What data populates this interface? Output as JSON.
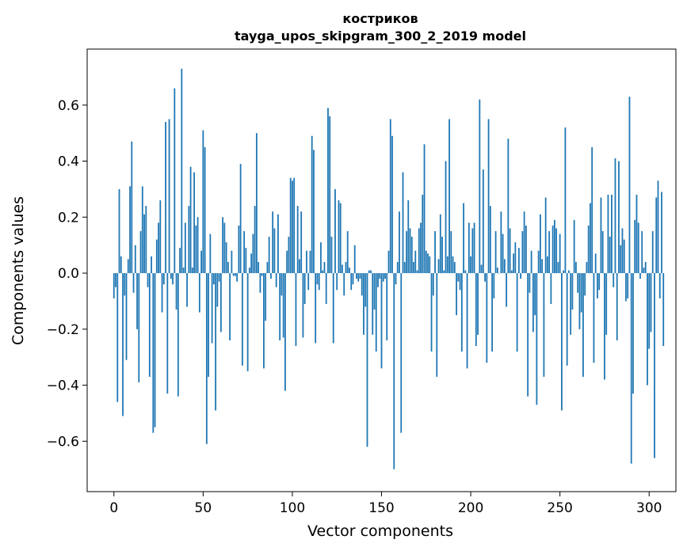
{
  "chart_data": {
    "type": "bar",
    "title_line1": "костриков",
    "title_line2": "tayga_upos_skipgram_300_2_2019 model",
    "xlabel": "Vector components",
    "ylabel": "Components values",
    "xlim": [
      -15,
      315
    ],
    "ylim": [
      -0.78,
      0.8
    ],
    "xticks": [
      0,
      50,
      100,
      150,
      200,
      250,
      300
    ],
    "xtick_labels": [
      "0",
      "50",
      "100",
      "150",
      "200",
      "250",
      "300"
    ],
    "yticks": [
      -0.6,
      -0.4,
      -0.2,
      0.0,
      0.2,
      0.4,
      0.6
    ],
    "ytick_labels": [
      "−0.6",
      "−0.4",
      "−0.2",
      "0.0",
      "0.2",
      "0.4",
      "0.6"
    ],
    "bar_color": "#1f77b4",
    "grid": false,
    "values": [
      -0.09,
      -0.05,
      -0.46,
      0.3,
      0.06,
      -0.51,
      -0.08,
      -0.31,
      0.05,
      0.31,
      0.47,
      -0.07,
      0.1,
      -0.2,
      -0.39,
      0.15,
      0.31,
      0.21,
      0.24,
      -0.05,
      -0.37,
      0.06,
      -0.57,
      -0.55,
      0.12,
      0.18,
      0.26,
      -0.14,
      -0.04,
      0.54,
      -0.43,
      0.55,
      -0.02,
      -0.04,
      0.66,
      -0.13,
      -0.44,
      0.09,
      0.73,
      0.02,
      0.18,
      -0.12,
      0.24,
      0.38,
      0.02,
      0.36,
      0.17,
      0.2,
      -0.14,
      0.08,
      0.51,
      0.45,
      -0.61,
      -0.37,
      0.14,
      -0.25,
      -0.04,
      -0.49,
      -0.12,
      -0.03,
      -0.21,
      0.2,
      0.18,
      0.11,
      0.04,
      -0.24,
      0.08,
      -0.01,
      -0.01,
      -0.03,
      0.17,
      0.39,
      -0.33,
      0.15,
      0.09,
      -0.35,
      0.02,
      0.07,
      0.14,
      0.24,
      0.5,
      0.04,
      -0.07,
      -0.01,
      -0.34,
      -0.17,
      0.04,
      0.13,
      -0.02,
      0.22,
      0.16,
      -0.05,
      0.21,
      -0.24,
      -0.08,
      -0.23,
      -0.42,
      0.08,
      0.13,
      0.34,
      0.33,
      0.34,
      -0.26,
      0.24,
      0.05,
      0.22,
      -0.23,
      -0.11,
      0.08,
      -0.06,
      0.08,
      0.49,
      0.44,
      -0.25,
      -0.04,
      -0.06,
      0.11,
      0.01,
      0.04,
      -0.11,
      0.59,
      0.56,
      0.13,
      -0.25,
      0.3,
      -0.06,
      0.26,
      0.25,
      0.03,
      -0.08,
      0.04,
      0.15,
      0.02,
      -0.06,
      -0.04,
      0.1,
      -0.02,
      -0.03,
      -0.02,
      -0.08,
      -0.22,
      -0.12,
      -0.62,
      0.01,
      0.01,
      -0.22,
      -0.13,
      -0.28,
      -0.05,
      -0.02,
      -0.34,
      -0.03,
      -0.02,
      -0.24,
      0.08,
      0.55,
      0.49,
      -0.7,
      -0.04,
      0.04,
      0.22,
      -0.57,
      0.36,
      0.04,
      0.15,
      0.26,
      0.16,
      0.13,
      0.04,
      0.08,
      0.01,
      0.16,
      0.18,
      0.28,
      0.46,
      0.08,
      0.07,
      0.06,
      -0.28,
      -0.08,
      0.15,
      -0.37,
      0.05,
      0.21,
      0.13,
      0.01,
      0.4,
      0.06,
      0.55,
      0.15,
      0.06,
      0.04,
      -0.15,
      -0.03,
      -0.06,
      -0.28,
      0.25,
      0.01,
      -0.34,
      0.18,
      0.06,
      0.16,
      0.18,
      -0.26,
      -0.22,
      0.62,
      0.03,
      0.37,
      -0.03,
      -0.32,
      0.55,
      0.24,
      -0.28,
      -0.09,
      0.15,
      0.02,
      0.0,
      0.22,
      0.14,
      0.05,
      -0.12,
      0.48,
      0.16,
      0.01,
      0.07,
      0.11,
      -0.28,
      0.09,
      -0.02,
      0.15,
      0.22,
      0.17,
      -0.44,
      -0.07,
      0.08,
      -0.21,
      -0.15,
      -0.47,
      0.08,
      0.21,
      0.05,
      -0.37,
      0.27,
      0.06,
      0.15,
      -0.11,
      0.17,
      0.19,
      0.16,
      0.04,
      0.14,
      -0.49,
      0.01,
      0.52,
      -0.33,
      0.01,
      -0.22,
      -0.13,
      0.19,
      0.04,
      -0.07,
      -0.2,
      -0.14,
      -0.37,
      -0.08,
      0.04,
      0.17,
      0.25,
      0.45,
      -0.32,
      0.07,
      -0.09,
      -0.06,
      0.27,
      0.15,
      -0.38,
      -0.22,
      0.28,
      0.13,
      0.28,
      -0.05,
      0.41,
      -0.24,
      0.4,
      0.1,
      0.16,
      0.12,
      -0.1,
      -0.09,
      0.63,
      -0.68,
      -0.43,
      0.19,
      0.28,
      0.18,
      -0.02,
      0.15,
      0.02,
      0.04,
      -0.4,
      -0.27,
      -0.21,
      0.15,
      -0.66,
      0.27,
      0.33,
      -0.09,
      0.29,
      -0.26
    ]
  }
}
